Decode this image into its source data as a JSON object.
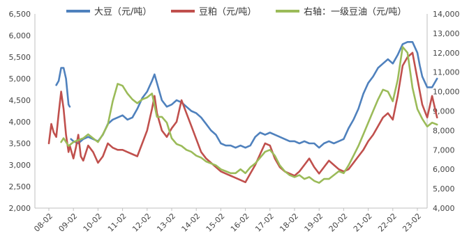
{
  "chart_data": {
    "type": "line",
    "title": "",
    "legend_position": "top",
    "grid": false,
    "x_categories": [
      "08-02",
      "09-02",
      "10-02",
      "11-02",
      "12-02",
      "13-02",
      "14-02",
      "15-02",
      "16-02",
      "17-02",
      "18-02",
      "19-02",
      "20-02",
      "21-02",
      "22-02",
      "23-02"
    ],
    "y_left": {
      "min": 2000,
      "max": 6500,
      "ticks": [
        "2,000",
        "2,500",
        "3,000",
        "3,500",
        "4,000",
        "4,500",
        "5,000",
        "5,500",
        "6,000",
        "6,500"
      ]
    },
    "y_right": {
      "min": 4000,
      "max": 14000,
      "ticks": [
        "4,000",
        "5,000",
        "6,000",
        "7,000",
        "8,000",
        "9,000",
        "10,000",
        "11,000",
        "12,000",
        "13,000",
        "14,000"
      ]
    },
    "series": [
      {
        "name": "大豆（元/吨）",
        "axis": "left",
        "color": "#4f81bd",
        "segments": [
          [
            [
              0.3,
              4850
            ],
            [
              0.4,
              4950
            ],
            [
              0.5,
              5250
            ],
            [
              0.6,
              5250
            ],
            [
              0.7,
              5000
            ],
            [
              0.8,
              4400
            ],
            [
              0.85,
              4350
            ]
          ],
          [
            [
              0.9,
              3600
            ],
            [
              1.0,
              3550
            ],
            [
              1.2,
              3500
            ],
            [
              1.4,
              3600
            ],
            [
              1.6,
              3650
            ],
            [
              1.8,
              3600
            ],
            [
              2.0,
              3550
            ],
            [
              2.2,
              3700
            ],
            [
              2.4,
              3950
            ],
            [
              2.6,
              4050
            ],
            [
              2.8,
              4100
            ],
            [
              3.0,
              4150
            ],
            [
              3.2,
              4050
            ],
            [
              3.4,
              4100
            ],
            [
              3.6,
              4300
            ],
            [
              3.8,
              4550
            ],
            [
              4.0,
              4700
            ],
            [
              4.2,
              4950
            ],
            [
              4.3,
              5100
            ],
            [
              4.4,
              4900
            ],
            [
              4.6,
              4500
            ],
            [
              4.8,
              4350
            ],
            [
              5.0,
              4400
            ],
            [
              5.2,
              4500
            ],
            [
              5.4,
              4450
            ],
            [
              5.6,
              4350
            ],
            [
              5.8,
              4250
            ],
            [
              6.0,
              4200
            ],
            [
              6.2,
              4100
            ],
            [
              6.4,
              3950
            ],
            [
              6.6,
              3800
            ],
            [
              6.8,
              3700
            ],
            [
              7.0,
              3500
            ],
            [
              7.2,
              3450
            ],
            [
              7.4,
              3450
            ],
            [
              7.6,
              3400
            ],
            [
              7.8,
              3450
            ],
            [
              8.0,
              3400
            ],
            [
              8.2,
              3450
            ],
            [
              8.4,
              3650
            ],
            [
              8.6,
              3750
            ],
            [
              8.8,
              3700
            ],
            [
              9.0,
              3750
            ],
            [
              9.2,
              3700
            ],
            [
              9.4,
              3650
            ],
            [
              9.6,
              3600
            ],
            [
              9.8,
              3550
            ],
            [
              10.0,
              3550
            ],
            [
              10.2,
              3500
            ],
            [
              10.4,
              3550
            ],
            [
              10.6,
              3500
            ],
            [
              10.8,
              3500
            ],
            [
              11.0,
              3400
            ],
            [
              11.2,
              3500
            ],
            [
              11.4,
              3550
            ],
            [
              11.6,
              3500
            ],
            [
              11.8,
              3550
            ],
            [
              12.0,
              3600
            ],
            [
              12.2,
              3850
            ],
            [
              12.4,
              4050
            ],
            [
              12.6,
              4300
            ],
            [
              12.8,
              4650
            ],
            [
              13.0,
              4900
            ],
            [
              13.2,
              5050
            ],
            [
              13.4,
              5250
            ],
            [
              13.6,
              5350
            ],
            [
              13.8,
              5450
            ],
            [
              14.0,
              5350
            ],
            [
              14.2,
              5550
            ],
            [
              14.4,
              5800
            ],
            [
              14.6,
              5850
            ],
            [
              14.8,
              5850
            ],
            [
              15.0,
              5600
            ],
            [
              15.1,
              5300
            ],
            [
              15.2,
              5050
            ],
            [
              15.4,
              4800
            ],
            [
              15.6,
              4800
            ],
            [
              15.8,
              5000
            ]
          ]
        ]
      },
      {
        "name": "豆粕（元/吨）",
        "axis": "left",
        "color": "#c0504d",
        "segments": [
          [
            [
              0.0,
              3500
            ],
            [
              0.1,
              3950
            ],
            [
              0.2,
              3750
            ],
            [
              0.3,
              3650
            ],
            [
              0.4,
              4200
            ],
            [
              0.5,
              4700
            ],
            [
              0.6,
              4300
            ],
            [
              0.7,
              3700
            ],
            [
              0.8,
              3300
            ],
            [
              0.85,
              3450
            ],
            [
              1.0,
              3150
            ],
            [
              1.1,
              3400
            ],
            [
              1.2,
              3700
            ],
            [
              1.3,
              3200
            ],
            [
              1.4,
              3100
            ],
            [
              1.6,
              3450
            ],
            [
              1.8,
              3300
            ],
            [
              2.0,
              3050
            ],
            [
              2.2,
              3200
            ],
            [
              2.4,
              3500
            ],
            [
              2.6,
              3400
            ],
            [
              2.8,
              3350
            ],
            [
              3.0,
              3350
            ],
            [
              3.2,
              3300
            ],
            [
              3.4,
              3250
            ],
            [
              3.6,
              3200
            ],
            [
              3.8,
              3500
            ],
            [
              4.0,
              3800
            ],
            [
              4.2,
              4300
            ],
            [
              4.3,
              4600
            ],
            [
              4.4,
              4200
            ],
            [
              4.6,
              3800
            ],
            [
              4.8,
              3650
            ],
            [
              5.0,
              3850
            ],
            [
              5.2,
              4000
            ],
            [
              5.4,
              4500
            ],
            [
              5.6,
              4200
            ],
            [
              5.8,
              3900
            ],
            [
              6.0,
              3600
            ],
            [
              6.2,
              3300
            ],
            [
              6.4,
              3150
            ],
            [
              6.6,
              3050
            ],
            [
              6.8,
              2950
            ],
            [
              7.0,
              2850
            ],
            [
              7.2,
              2800
            ],
            [
              7.4,
              2750
            ],
            [
              7.6,
              2700
            ],
            [
              7.8,
              2650
            ],
            [
              8.0,
              2600
            ],
            [
              8.2,
              2800
            ],
            [
              8.4,
              3000
            ],
            [
              8.6,
              3250
            ],
            [
              8.8,
              3500
            ],
            [
              9.0,
              3450
            ],
            [
              9.2,
              3150
            ],
            [
              9.4,
              2950
            ],
            [
              9.6,
              2850
            ],
            [
              9.8,
              2800
            ],
            [
              10.0,
              2750
            ],
            [
              10.2,
              2850
            ],
            [
              10.4,
              3000
            ],
            [
              10.6,
              3150
            ],
            [
              10.8,
              2950
            ],
            [
              11.0,
              2800
            ],
            [
              11.2,
              2950
            ],
            [
              11.4,
              3100
            ],
            [
              11.6,
              3000
            ],
            [
              11.8,
              2900
            ],
            [
              12.0,
              2850
            ],
            [
              12.2,
              2900
            ],
            [
              12.4,
              3050
            ],
            [
              12.6,
              3200
            ],
            [
              12.8,
              3350
            ],
            [
              13.0,
              3550
            ],
            [
              13.2,
              3700
            ],
            [
              13.4,
              3900
            ],
            [
              13.6,
              4100
            ],
            [
              13.8,
              4200
            ],
            [
              14.0,
              4050
            ],
            [
              14.2,
              4600
            ],
            [
              14.4,
              5300
            ],
            [
              14.6,
              5500
            ],
            [
              14.8,
              5600
            ],
            [
              15.0,
              5000
            ],
            [
              15.2,
              4400
            ],
            [
              15.4,
              4100
            ],
            [
              15.6,
              4600
            ],
            [
              15.8,
              4100
            ]
          ]
        ]
      },
      {
        "name": "右轴：一级豆油（元/吨）",
        "axis": "right",
        "color": "#9bbb59",
        "segments": [
          [
            [
              0.5,
              7400
            ],
            [
              0.6,
              7600
            ],
            [
              0.8,
              7200
            ],
            [
              1.0,
              7400
            ],
            [
              1.2,
              7500
            ],
            [
              1.4,
              7600
            ],
            [
              1.6,
              7800
            ],
            [
              1.8,
              7600
            ],
            [
              2.0,
              7400
            ],
            [
              2.2,
              7800
            ],
            [
              2.4,
              8300
            ],
            [
              2.6,
              9500
            ],
            [
              2.8,
              10400
            ],
            [
              3.0,
              10300
            ],
            [
              3.2,
              9900
            ],
            [
              3.4,
              9600
            ],
            [
              3.6,
              9400
            ],
            [
              3.8,
              9600
            ],
            [
              4.0,
              9700
            ],
            [
              4.2,
              9900
            ],
            [
              4.4,
              8700
            ],
            [
              4.6,
              8700
            ],
            [
              4.8,
              8400
            ],
            [
              5.0,
              7600
            ],
            [
              5.2,
              7300
            ],
            [
              5.4,
              7200
            ],
            [
              5.6,
              7000
            ],
            [
              5.8,
              6900
            ],
            [
              6.0,
              6700
            ],
            [
              6.2,
              6600
            ],
            [
              6.4,
              6400
            ],
            [
              6.6,
              6300
            ],
            [
              6.8,
              6200
            ],
            [
              7.0,
              6000
            ],
            [
              7.2,
              5900
            ],
            [
              7.4,
              5800
            ],
            [
              7.6,
              5800
            ],
            [
              7.8,
              6000
            ],
            [
              8.0,
              5800
            ],
            [
              8.2,
              6100
            ],
            [
              8.4,
              6300
            ],
            [
              8.6,
              6600
            ],
            [
              8.8,
              6900
            ],
            [
              9.0,
              7000
            ],
            [
              9.2,
              6700
            ],
            [
              9.4,
              6200
            ],
            [
              9.6,
              5900
            ],
            [
              9.8,
              5700
            ],
            [
              10.0,
              5600
            ],
            [
              10.2,
              5700
            ],
            [
              10.4,
              5500
            ],
            [
              10.6,
              5600
            ],
            [
              10.8,
              5400
            ],
            [
              11.0,
              5300
            ],
            [
              11.2,
              5500
            ],
            [
              11.4,
              5500
            ],
            [
              11.6,
              5700
            ],
            [
              11.8,
              5900
            ],
            [
              12.0,
              5800
            ],
            [
              12.2,
              6200
            ],
            [
              12.4,
              6700
            ],
            [
              12.6,
              7200
            ],
            [
              12.8,
              7800
            ],
            [
              13.0,
              8400
            ],
            [
              13.2,
              9000
            ],
            [
              13.4,
              9600
            ],
            [
              13.6,
              10100
            ],
            [
              13.8,
              10000
            ],
            [
              14.0,
              9500
            ],
            [
              14.2,
              10600
            ],
            [
              14.4,
              12300
            ],
            [
              14.6,
              12000
            ],
            [
              14.8,
              10200
            ],
            [
              15.0,
              9100
            ],
            [
              15.2,
              8600
            ],
            [
              15.4,
              8200
            ],
            [
              15.6,
              8400
            ],
            [
              15.8,
              8300
            ]
          ]
        ]
      }
    ]
  }
}
